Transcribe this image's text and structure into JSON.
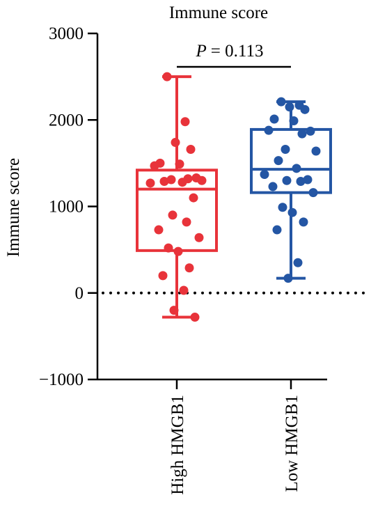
{
  "chart_data": {
    "type": "box",
    "title": "Immune score",
    "ylabel": "Immune score",
    "xlabel": "",
    "ylim": [
      -1000,
      3000
    ],
    "yticks": [
      3000,
      2000,
      1000,
      0,
      -1000
    ],
    "ytick_labels": [
      "3000",
      "2000",
      "1000",
      "0",
      "−1000"
    ],
    "reference_line": 0,
    "annotation": {
      "p_label": "P",
      "p_value": "= 0.113"
    },
    "groups": [
      {
        "name": "High HMGB1",
        "color": "#e8333a",
        "min": -280,
        "q1": 490,
        "median": 1200,
        "q3": 1420,
        "max": 2500,
        "points": [
          2500,
          1980,
          1740,
          1660,
          1500,
          1490,
          1470,
          1330,
          1320,
          1310,
          1300,
          1290,
          1280,
          1270,
          1100,
          900,
          820,
          730,
          640,
          520,
          480,
          290,
          200,
          30,
          -200,
          -280
        ]
      },
      {
        "name": "Low HMGB1",
        "color": "#2456a4",
        "min": 170,
        "q1": 1160,
        "median": 1430,
        "q3": 1890,
        "max": 2210,
        "points": [
          2210,
          2170,
          2150,
          2120,
          2010,
          1990,
          1880,
          1870,
          1840,
          1660,
          1640,
          1530,
          1440,
          1370,
          1310,
          1300,
          1290,
          1230,
          1160,
          990,
          930,
          820,
          730,
          350,
          170
        ]
      }
    ]
  }
}
